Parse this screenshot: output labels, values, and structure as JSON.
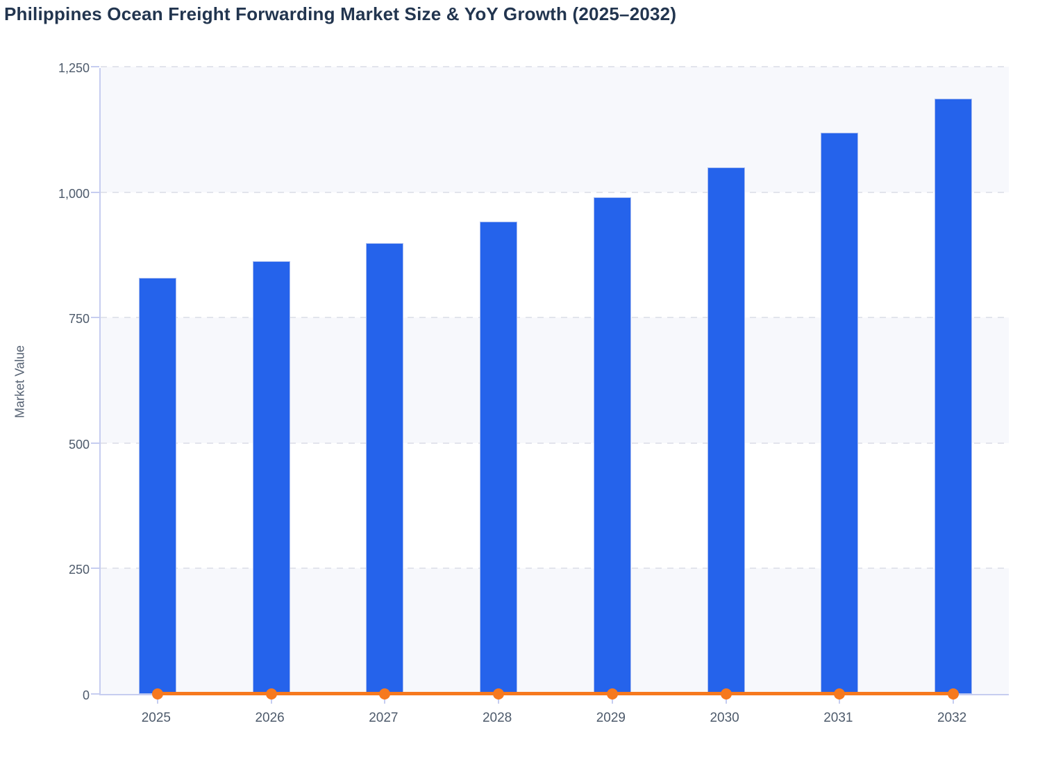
{
  "chart_data": {
    "type": "bar",
    "title": "Philippines Ocean Freight Forwarding Market Size & YoY Growth (2025–2032)",
    "xlabel": "",
    "ylabel": "Market Value",
    "categories": [
      "2025",
      "2026",
      "2027",
      "2028",
      "2029",
      "2030",
      "2031",
      "2032"
    ],
    "series": [
      {
        "name": "Market Size",
        "type": "bar",
        "color": "#2563eb",
        "values": [
          829,
          862,
          899,
          941,
          990,
          1049,
          1119,
          1186
        ]
      },
      {
        "name": "YoY Growth",
        "type": "line",
        "color": "#f6791e",
        "values": [
          0,
          0,
          0,
          0,
          0,
          0,
          0,
          0
        ],
        "note": "orange line with circular markers rendered flat along the zero baseline"
      }
    ],
    "ylim": [
      0,
      1250
    ],
    "ytick_step": 250,
    "ytick_labels": [
      "0",
      "250",
      "500",
      "750",
      "1,000",
      "1,250"
    ],
    "grid": "dashed horizontal gridlines with alternating light band fill",
    "legend": "none",
    "colors": {
      "bar": "#2563eb",
      "bar_edge": "#aabdf0",
      "line": "#f6791e",
      "band_fill": "#f7f8fc",
      "gridline": "#e2e4ec",
      "axis_line": "#c6cdf0",
      "title_text": "#22354f",
      "tick_text": "#4d5a6b",
      "background": "#ffffff"
    }
  }
}
